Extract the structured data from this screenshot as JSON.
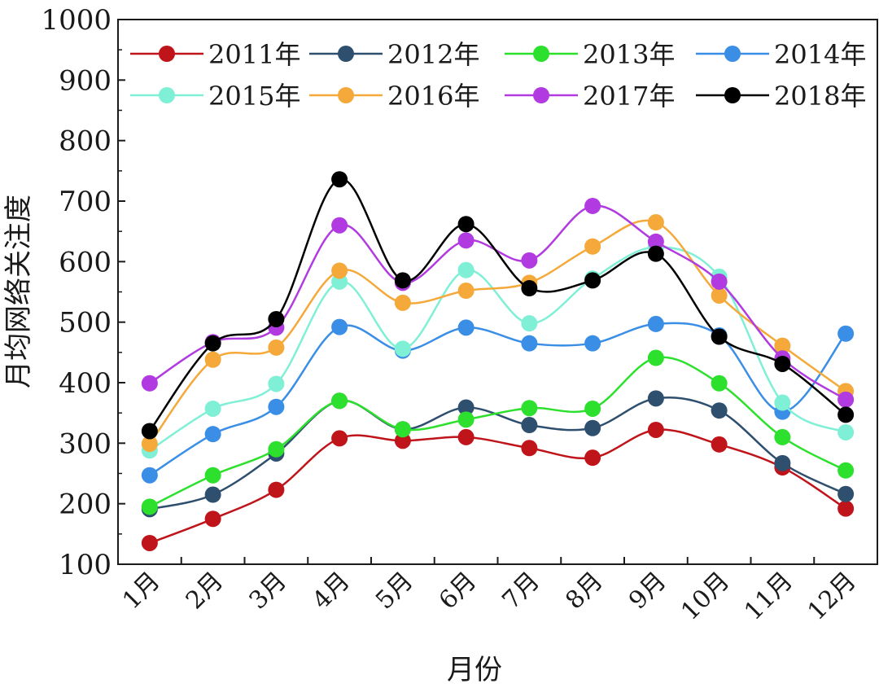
{
  "chart_data": {
    "type": "line",
    "title": "",
    "xlabel": "月份",
    "ylabel": "月均网络关注度",
    "ylim": [
      100,
      1000
    ],
    "yticks": [
      100,
      200,
      300,
      400,
      500,
      600,
      700,
      800,
      900,
      1000
    ],
    "categories": [
      "1月",
      "2月",
      "3月",
      "4月",
      "5月",
      "6月",
      "7月",
      "8月",
      "9月",
      "10月",
      "11月",
      "12月"
    ],
    "legend_position": "top",
    "grid": false,
    "series": [
      {
        "name": "2011年",
        "color": "#c0141b",
        "values": [
          135,
          175,
          223,
          308,
          304,
          310,
          292,
          276,
          322,
          298,
          260,
          192
        ]
      },
      {
        "name": "2012年",
        "color": "#2f4f6f",
        "values": [
          191,
          215,
          283,
          370,
          323,
          359,
          330,
          325,
          374,
          354,
          267,
          216
        ]
      },
      {
        "name": "2013年",
        "color": "#2de02d",
        "values": [
          195,
          247,
          290,
          370,
          323,
          339,
          358,
          357,
          441,
          399,
          310,
          255
        ]
      },
      {
        "name": "2014年",
        "color": "#3a8ee6",
        "values": [
          247,
          315,
          360,
          492,
          453,
          491,
          465,
          465,
          497,
          478,
          352,
          481
        ]
      },
      {
        "name": "2015年",
        "color": "#7ff0d6",
        "values": [
          288,
          357,
          398,
          567,
          456,
          586,
          498,
          572,
          624,
          575,
          367,
          318
        ]
      },
      {
        "name": "2016年",
        "color": "#f4a93a",
        "values": [
          299,
          438,
          458,
          585,
          532,
          552,
          565,
          625,
          665,
          544,
          461,
          386
        ]
      },
      {
        "name": "2017年",
        "color": "#b13be0",
        "values": [
          399,
          467,
          491,
          660,
          565,
          635,
          602,
          692,
          633,
          567,
          440,
          372
        ]
      },
      {
        "name": "2018年",
        "color": "#000000",
        "values": [
          320,
          465,
          505,
          736,
          569,
          662,
          556,
          569,
          613,
          476,
          431,
          347
        ]
      }
    ]
  }
}
